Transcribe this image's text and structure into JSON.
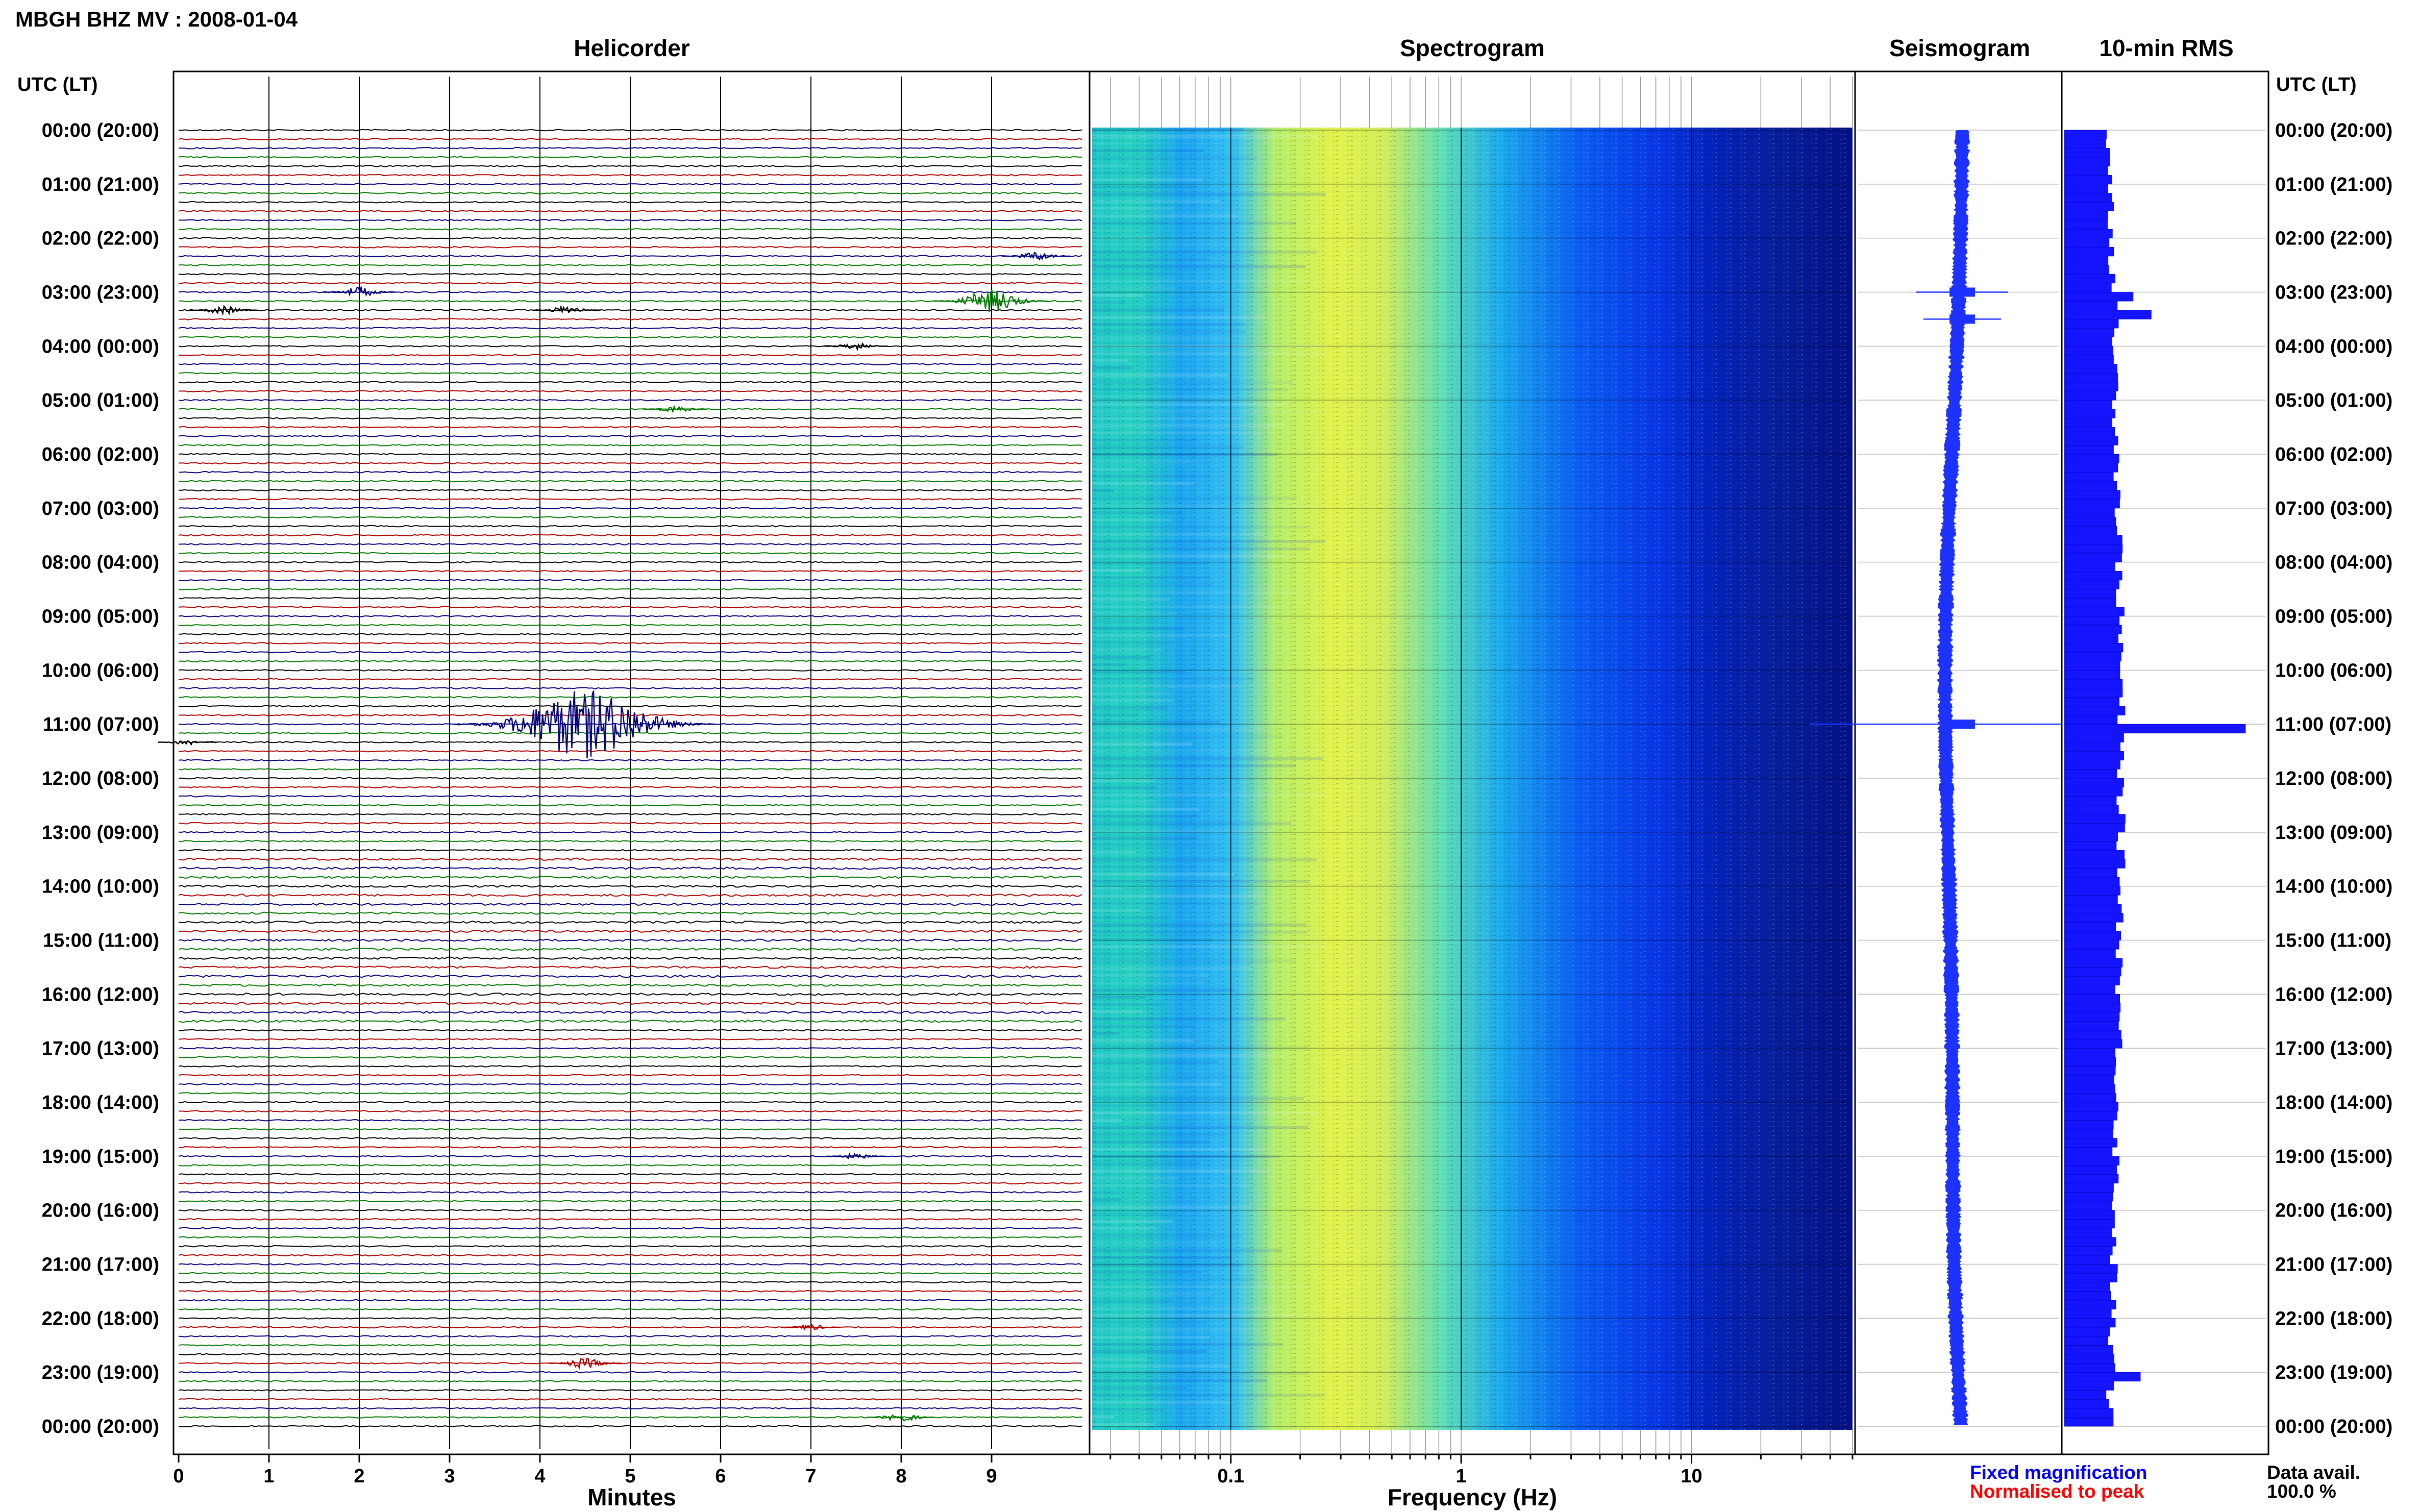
{
  "header": {
    "station_title": "MBGH BHZ MV : 2008-01-04",
    "time_axis_label": "UTC (LT)"
  },
  "panels": {
    "helicorder": "Helicorder",
    "spectrogram": "Spectrogram",
    "seismogram": "Seismogram",
    "rms": "10-min RMS"
  },
  "time_rows": [
    "00:00 (20:00)",
    "01:00 (21:00)",
    "02:00 (22:00)",
    "03:00 (23:00)",
    "04:00 (00:00)",
    "05:00 (01:00)",
    "06:00 (02:00)",
    "07:00 (03:00)",
    "08:00 (04:00)",
    "09:00 (05:00)",
    "10:00 (06:00)",
    "11:00 (07:00)",
    "12:00 (08:00)",
    "13:00 (09:00)",
    "14:00 (10:00)",
    "15:00 (11:00)",
    "16:00 (12:00)",
    "17:00 (13:00)",
    "18:00 (14:00)",
    "19:00 (15:00)",
    "20:00 (16:00)",
    "21:00 (17:00)",
    "22:00 (18:00)",
    "23:00 (19:00)",
    "00:00 (20:00)"
  ],
  "footer": {
    "legend_fixed": "Fixed magnification",
    "legend_normalised": "Normalised to peak",
    "data_avail_label": "Data avail.",
    "data_avail_value": "100.0 %"
  },
  "colors": {
    "trace_cycle": [
      "#000000",
      "#b00000",
      "#00007a",
      "#007a00"
    ],
    "seismogram": "#1e32ff",
    "rms_bar": "#1414ff",
    "legend_fixed": "#0000ff",
    "legend_normalised": "#ff0000"
  },
  "chart_data": [
    {
      "type": "line",
      "name": "helicorder",
      "title": "Helicorder",
      "xlabel": "Minutes",
      "x_ticks": [
        0,
        1,
        2,
        3,
        4,
        5,
        6,
        7,
        8,
        9
      ],
      "xlim": [
        0,
        10
      ],
      "rows_per_hour": 6,
      "lines": 145,
      "events": [
        {
          "time": "02:20",
          "minute": 9.5,
          "amp": 0.3
        },
        {
          "time": "03:00",
          "minute": 2.0,
          "amp": 0.35
        },
        {
          "time": "03:10",
          "minute": 9.0,
          "amp": 0.8
        },
        {
          "time": "03:20",
          "minute": 0.5,
          "amp": 0.3
        },
        {
          "time": "03:20",
          "minute": 4.3,
          "amp": 0.3
        },
        {
          "time": "04:00",
          "minute": 7.5,
          "amp": 0.25
        },
        {
          "time": "05:10",
          "minute": 5.5,
          "amp": 0.25
        },
        {
          "time": "11:00",
          "minute": 4.5,
          "amp": 2.4
        },
        {
          "time": "11:20",
          "minute": 0.1,
          "amp": 0.2
        },
        {
          "time": "19:00",
          "minute": 7.5,
          "amp": 0.2
        },
        {
          "time": "22:10",
          "minute": 7.0,
          "amp": 0.2
        },
        {
          "time": "22:50",
          "minute": 4.5,
          "amp": 0.35
        },
        {
          "time": "23:50",
          "minute": 8.0,
          "amp": 0.3
        }
      ]
    },
    {
      "type": "heatmap",
      "name": "spectrogram",
      "title": "Spectrogram",
      "xlabel": "Frequency (Hz)",
      "x_scale": "log",
      "xlim": [
        0.025,
        50
      ],
      "x_ticks": [
        0.1,
        1,
        10
      ],
      "colormap": "jet",
      "notes": "energy peak 0.1-0.5 Hz; high frequencies above ~10 Hz low"
    },
    {
      "type": "line",
      "name": "seismogram",
      "title": "Seismogram",
      "spikes": [
        {
          "time": "03:00",
          "amp": 0.25
        },
        {
          "time": "03:30",
          "amp": 0.2
        },
        {
          "time": "11:00",
          "amp": 1.0
        }
      ]
    },
    {
      "type": "bar",
      "name": "rms",
      "title": "10-min RMS",
      "bins_per_hour": 6,
      "base_level": 0.3,
      "peaks": [
        {
          "time": "03:00",
          "value": 0.38
        },
        {
          "time": "03:20",
          "value": 0.48
        },
        {
          "time": "11:00",
          "value": 1.0
        },
        {
          "time": "23:00",
          "value": 0.42
        }
      ]
    }
  ]
}
